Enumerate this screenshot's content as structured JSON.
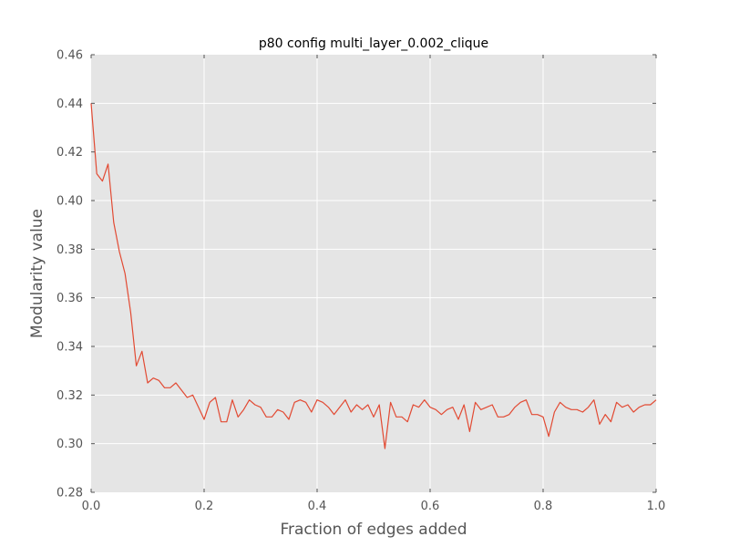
{
  "chart_data": {
    "type": "line",
    "title": "p80 config multi_layer_0.002_clique",
    "xlabel": "Fraction of edges added",
    "ylabel": "Modularity value",
    "xlim": [
      0.0,
      1.0
    ],
    "ylim": [
      0.28,
      0.46
    ],
    "xticks": [
      "0.0",
      "0.2",
      "0.4",
      "0.6",
      "0.8",
      "1.0"
    ],
    "yticks": [
      "0.28",
      "0.30",
      "0.32",
      "0.34",
      "0.36",
      "0.38",
      "0.40",
      "0.42",
      "0.44",
      "0.46"
    ],
    "grid": true,
    "colors": {
      "background": "#e5e5e5",
      "grid": "#ffffff",
      "line": "#e24a33"
    },
    "series": [
      {
        "x": [
          0.0,
          0.01,
          0.02,
          0.03,
          0.04,
          0.05,
          0.06,
          0.07,
          0.08,
          0.09,
          0.1,
          0.11,
          0.12,
          0.13,
          0.14,
          0.15,
          0.16,
          0.17,
          0.18,
          0.19,
          0.2,
          0.21,
          0.22,
          0.23,
          0.24,
          0.25,
          0.26,
          0.27,
          0.28,
          0.29,
          0.3,
          0.31,
          0.32,
          0.33,
          0.34,
          0.35,
          0.36,
          0.37,
          0.38,
          0.39,
          0.4,
          0.41,
          0.42,
          0.43,
          0.44,
          0.45,
          0.46,
          0.47,
          0.48,
          0.49,
          0.5,
          0.51,
          0.52,
          0.53,
          0.54,
          0.55,
          0.56,
          0.57,
          0.58,
          0.59,
          0.6,
          0.61,
          0.62,
          0.63,
          0.64,
          0.65,
          0.66,
          0.67,
          0.68,
          0.69,
          0.7,
          0.71,
          0.72,
          0.73,
          0.74,
          0.75,
          0.76,
          0.77,
          0.78,
          0.79,
          0.8,
          0.81,
          0.82,
          0.83,
          0.84,
          0.85,
          0.86,
          0.87,
          0.88,
          0.89,
          0.9,
          0.91,
          0.92,
          0.93,
          0.94,
          0.95,
          0.96,
          0.97,
          0.98,
          0.99,
          1.0
        ],
        "values": [
          0.44,
          0.411,
          0.408,
          0.415,
          0.391,
          0.379,
          0.37,
          0.354,
          0.332,
          0.338,
          0.325,
          0.327,
          0.326,
          0.323,
          0.323,
          0.325,
          0.322,
          0.319,
          0.32,
          0.315,
          0.31,
          0.317,
          0.319,
          0.309,
          0.309,
          0.318,
          0.311,
          0.314,
          0.318,
          0.316,
          0.315,
          0.311,
          0.311,
          0.314,
          0.313,
          0.31,
          0.317,
          0.318,
          0.317,
          0.313,
          0.318,
          0.317,
          0.315,
          0.312,
          0.315,
          0.318,
          0.313,
          0.316,
          0.314,
          0.316,
          0.311,
          0.316,
          0.298,
          0.317,
          0.311,
          0.311,
          0.309,
          0.316,
          0.315,
          0.318,
          0.315,
          0.314,
          0.312,
          0.314,
          0.315,
          0.31,
          0.316,
          0.305,
          0.317,
          0.314,
          0.315,
          0.316,
          0.311,
          0.311,
          0.312,
          0.315,
          0.317,
          0.318,
          0.312,
          0.312,
          0.311,
          0.303,
          0.313,
          0.317,
          0.315,
          0.314,
          0.314,
          0.313,
          0.315,
          0.318,
          0.308,
          0.312,
          0.309,
          0.317,
          0.315,
          0.316,
          0.313,
          0.315,
          0.316,
          0.316,
          0.318
        ]
      }
    ]
  }
}
